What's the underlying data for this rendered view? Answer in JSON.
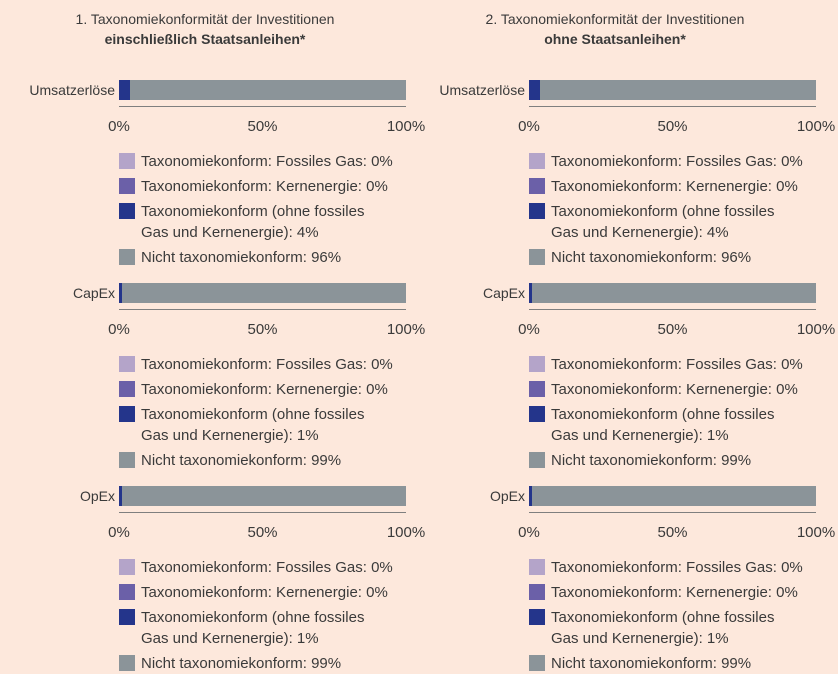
{
  "chart_data": [
    {
      "type": "bar",
      "title": "1. Taxonomiekonformität der Investitionen",
      "subtitle": "einschließlich Staatsanleihen*",
      "categories": [
        "Umsatzerlöse"
      ],
      "xlim": [
        0,
        100
      ],
      "xticks": [
        {
          "value": 0,
          "label": "0%"
        },
        {
          "value": 50,
          "label": "50%"
        },
        {
          "value": 100,
          "label": "100%"
        }
      ],
      "series": [
        {
          "name": "Taxonomiekonform: Fossiles Gas: 0%",
          "color": "#b4a4c9",
          "values": [
            0
          ]
        },
        {
          "name": "Taxonomiekonform: Kernenergie: 0%",
          "color": "#6b60a8",
          "values": [
            0
          ]
        },
        {
          "name": "Taxonomiekonform (ohne fossiles Gas und Kernenergie): 4%",
          "color": "#24358b",
          "values": [
            4
          ]
        },
        {
          "name": "Nicht taxonomiekonform: 96%",
          "color": "#8b9499",
          "values": [
            96
          ]
        }
      ]
    },
    {
      "type": "bar",
      "categories": [
        "CapEx"
      ],
      "xlim": [
        0,
        100
      ],
      "xticks": [
        {
          "value": 0,
          "label": "0%"
        },
        {
          "value": 50,
          "label": "50%"
        },
        {
          "value": 100,
          "label": "100%"
        }
      ],
      "series": [
        {
          "name": "Taxonomiekonform: Fossiles Gas: 0%",
          "color": "#b4a4c9",
          "values": [
            0
          ]
        },
        {
          "name": "Taxonomiekonform: Kernenergie: 0%",
          "color": "#6b60a8",
          "values": [
            0
          ]
        },
        {
          "name": "Taxonomiekonform (ohne fossiles Gas und Kernenergie): 1%",
          "color": "#24358b",
          "values": [
            1
          ]
        },
        {
          "name": "Nicht taxonomiekonform: 99%",
          "color": "#8b9499",
          "values": [
            99
          ]
        }
      ]
    },
    {
      "type": "bar",
      "categories": [
        "OpEx"
      ],
      "xlim": [
        0,
        100
      ],
      "xticks": [
        {
          "value": 0,
          "label": "0%"
        },
        {
          "value": 50,
          "label": "50%"
        },
        {
          "value": 100,
          "label": "100%"
        }
      ],
      "series": [
        {
          "name": "Taxonomiekonform: Fossiles Gas: 0%",
          "color": "#b4a4c9",
          "values": [
            0
          ]
        },
        {
          "name": "Taxonomiekonform: Kernenergie: 0%",
          "color": "#6b60a8",
          "values": [
            0
          ]
        },
        {
          "name": "Taxonomiekonform (ohne fossiles Gas und Kernenergie): 1%",
          "color": "#24358b",
          "values": [
            1
          ]
        },
        {
          "name": "Nicht taxonomiekonform: 99%",
          "color": "#8b9499",
          "values": [
            99
          ]
        }
      ]
    },
    {
      "type": "bar",
      "title": "2. Taxonomiekonformität der Investitionen",
      "subtitle": "ohne Staatsanleihen*",
      "categories": [
        "Umsatzerlöse"
      ],
      "xlim": [
        0,
        100
      ],
      "xticks": [
        {
          "value": 0,
          "label": "0%"
        },
        {
          "value": 50,
          "label": "50%"
        },
        {
          "value": 100,
          "label": "100%"
        }
      ],
      "series": [
        {
          "name": "Taxonomiekonform: Fossiles Gas: 0%",
          "color": "#b4a4c9",
          "values": [
            0
          ]
        },
        {
          "name": "Taxonomiekonform: Kernenergie: 0%",
          "color": "#6b60a8",
          "values": [
            0
          ]
        },
        {
          "name": "Taxonomiekonform (ohne fossiles Gas und Kernenergie): 4%",
          "color": "#24358b",
          "values": [
            4
          ]
        },
        {
          "name": "Nicht taxonomiekonform: 96%",
          "color": "#8b9499",
          "values": [
            96
          ]
        }
      ]
    },
    {
      "type": "bar",
      "categories": [
        "CapEx"
      ],
      "xlim": [
        0,
        100
      ],
      "xticks": [
        {
          "value": 0,
          "label": "0%"
        },
        {
          "value": 50,
          "label": "50%"
        },
        {
          "value": 100,
          "label": "100%"
        }
      ],
      "series": [
        {
          "name": "Taxonomiekonform: Fossiles Gas: 0%",
          "color": "#b4a4c9",
          "values": [
            0
          ]
        },
        {
          "name": "Taxonomiekonform: Kernenergie: 0%",
          "color": "#6b60a8",
          "values": [
            0
          ]
        },
        {
          "name": "Taxonomiekonform (ohne fossiles Gas und Kernenergie): 1%",
          "color": "#24358b",
          "values": [
            1
          ]
        },
        {
          "name": "Nicht taxonomiekonform: 99%",
          "color": "#8b9499",
          "values": [
            99
          ]
        }
      ]
    },
    {
      "type": "bar",
      "categories": [
        "OpEx"
      ],
      "xlim": [
        0,
        100
      ],
      "xticks": [
        {
          "value": 0,
          "label": "0%"
        },
        {
          "value": 50,
          "label": "50%"
        },
        {
          "value": 100,
          "label": "100%"
        }
      ],
      "series": [
        {
          "name": "Taxonomiekonform: Fossiles Gas: 0%",
          "color": "#b4a4c9",
          "values": [
            0
          ]
        },
        {
          "name": "Taxonomiekonform: Kernenergie: 0%",
          "color": "#6b60a8",
          "values": [
            0
          ]
        },
        {
          "name": "Taxonomiekonform (ohne fossiles Gas und Kernenergie): 1%",
          "color": "#24358b",
          "values": [
            1
          ]
        },
        {
          "name": "Nicht taxonomiekonform: 99%",
          "color": "#8b9499",
          "values": [
            99
          ]
        }
      ]
    }
  ]
}
